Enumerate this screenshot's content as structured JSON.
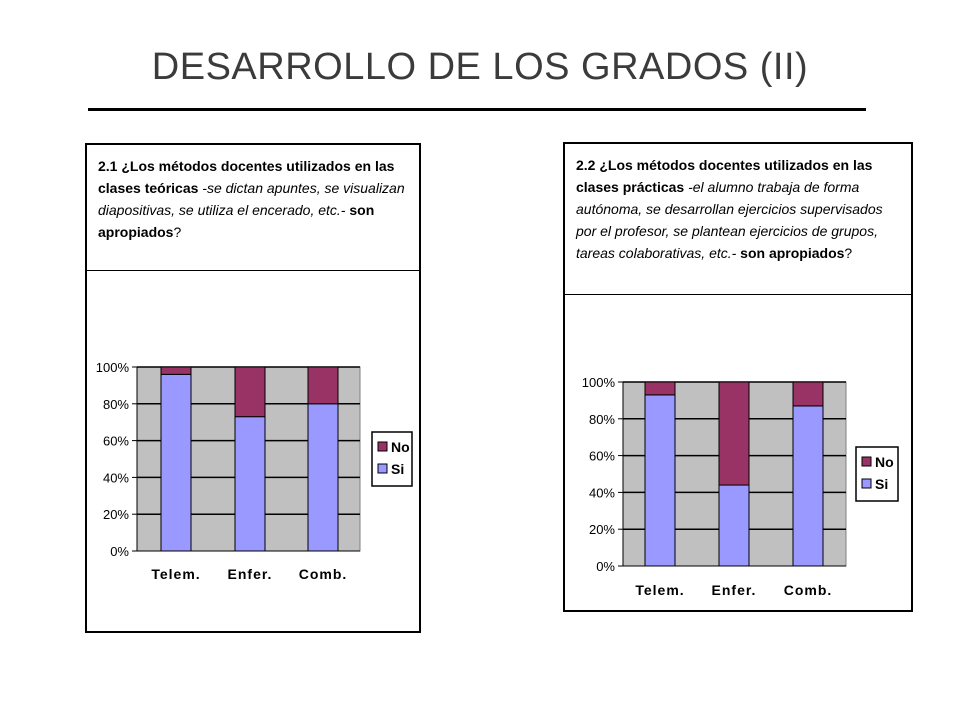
{
  "slide": {
    "title": "DESARROLLO DE LOS GRADOS (II)"
  },
  "panels": [
    {
      "question": {
        "number_text": "2.1 ¿Los métodos docentes utilizados en las clases teóricas",
        "examples": " -se dictan apuntes, se visualizan diapositivas, se utiliza el encerado, etc.-",
        "ending": " son apropiados",
        "qmark": "?"
      }
    },
    {
      "question": {
        "number_text": "2.2 ¿Los métodos docentes utilizados en las clases prácticas",
        "examples": " -el alumno trabaja de forma autónoma, se desarrollan ejercicios supervisados por el profesor, se plantean ejercicios de grupos, tareas colaborativas, etc.-",
        "ending": " son apropiados",
        "qmark": "?"
      }
    }
  ],
  "chart_data": [
    {
      "type": "bar",
      "stacked": true,
      "categories": [
        "Telem.",
        "Enfer.",
        "Comb."
      ],
      "series": [
        {
          "name": "No",
          "values": [
            4,
            27,
            20
          ]
        },
        {
          "name": "Si",
          "values": [
            96,
            73,
            80
          ]
        }
      ],
      "yticks": [
        "0%",
        "20%",
        "40%",
        "60%",
        "80%",
        "100%"
      ],
      "ylim": [
        0,
        100
      ],
      "grid": true,
      "legend": "right",
      "colors": {
        "No": "#993366",
        "Si": "#9999ff",
        "plot_bg": "#c0c0c0"
      }
    },
    {
      "type": "bar",
      "stacked": true,
      "categories": [
        "Telem.",
        "Enfer.",
        "Comb."
      ],
      "series": [
        {
          "name": "No",
          "values": [
            7,
            56,
            13
          ]
        },
        {
          "name": "Si",
          "values": [
            93,
            44,
            87
          ]
        }
      ],
      "yticks": [
        "0%",
        "20%",
        "40%",
        "60%",
        "80%",
        "100%"
      ],
      "ylim": [
        0,
        100
      ],
      "grid": true,
      "legend": "right",
      "colors": {
        "No": "#993366",
        "Si": "#9999ff",
        "plot_bg": "#c0c0c0"
      }
    }
  ]
}
